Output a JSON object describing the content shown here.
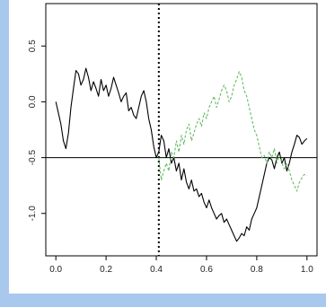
{
  "chart_data": {
    "type": "line",
    "title": "",
    "xlabel": "",
    "ylabel": "",
    "xlim": [
      -0.04,
      1.04
    ],
    "ylim": [
      -1.38,
      0.88
    ],
    "x_ticks": [
      0.0,
      0.2,
      0.4,
      0.6,
      0.8,
      1.0
    ],
    "x_tick_labels": [
      "0.0",
      "0.2",
      "0.4",
      "0.6",
      "0.8",
      "1.0"
    ],
    "y_ticks": [
      0.5,
      0.0,
      -0.5,
      -1.0
    ],
    "y_tick_labels": [
      "0.5",
      "0.0",
      "-0.5",
      "-1.0"
    ],
    "grid": false,
    "hline": {
      "y": -0.5,
      "color": "#000000"
    },
    "vline": {
      "x": 0.41,
      "style": "dotted",
      "color": "#000000"
    },
    "series": [
      {
        "color": "#000000",
        "style": "solid",
        "x": [
          0.0,
          0.01,
          0.02,
          0.03,
          0.04,
          0.05,
          0.06,
          0.07,
          0.08,
          0.09,
          0.1,
          0.11,
          0.12,
          0.13,
          0.14,
          0.15,
          0.16,
          0.17,
          0.18,
          0.19,
          0.2,
          0.21,
          0.22,
          0.23,
          0.24,
          0.25,
          0.26,
          0.27,
          0.28,
          0.29,
          0.3,
          0.31,
          0.32,
          0.33,
          0.34,
          0.35,
          0.36,
          0.37,
          0.38,
          0.39,
          0.4,
          0.41,
          0.42,
          0.43,
          0.44,
          0.45,
          0.46,
          0.47,
          0.48,
          0.49,
          0.5,
          0.51,
          0.52,
          0.53,
          0.54,
          0.55,
          0.56,
          0.57,
          0.58,
          0.59,
          0.6,
          0.61,
          0.62,
          0.63,
          0.64,
          0.65,
          0.66,
          0.67,
          0.68,
          0.69,
          0.7,
          0.71,
          0.72,
          0.73,
          0.74,
          0.75,
          0.76,
          0.77,
          0.78,
          0.79,
          0.8,
          0.81,
          0.82,
          0.83,
          0.84,
          0.85,
          0.86,
          0.87,
          0.88,
          0.89,
          0.9,
          0.91,
          0.92,
          0.93,
          0.94,
          0.95,
          0.96,
          0.97,
          0.98,
          0.99,
          1.0
        ],
        "values": [
          0.0,
          -0.1,
          -0.2,
          -0.35,
          -0.42,
          -0.28,
          -0.05,
          0.12,
          0.28,
          0.25,
          0.15,
          0.2,
          0.3,
          0.22,
          0.1,
          0.18,
          0.12,
          0.05,
          0.2,
          0.1,
          0.15,
          0.05,
          0.12,
          0.22,
          0.15,
          0.08,
          0.0,
          0.05,
          0.08,
          -0.08,
          -0.05,
          -0.12,
          -0.15,
          -0.05,
          0.05,
          0.1,
          0.0,
          -0.15,
          -0.25,
          -0.4,
          -0.5,
          -0.45,
          -0.3,
          -0.35,
          -0.5,
          -0.42,
          -0.55,
          -0.5,
          -0.62,
          -0.55,
          -0.7,
          -0.6,
          -0.72,
          -0.78,
          -0.7,
          -0.8,
          -0.78,
          -0.85,
          -0.82,
          -0.9,
          -0.95,
          -0.88,
          -0.95,
          -1.0,
          -1.05,
          -1.02,
          -1.0,
          -1.08,
          -1.05,
          -1.1,
          -1.15,
          -1.2,
          -1.25,
          -1.22,
          -1.18,
          -1.2,
          -1.12,
          -1.15,
          -1.05,
          -1.0,
          -0.95,
          -0.85,
          -0.75,
          -0.65,
          -0.55,
          -0.5,
          -0.52,
          -0.6,
          -0.5,
          -0.45,
          -0.55,
          -0.5,
          -0.62,
          -0.55,
          -0.45,
          -0.38,
          -0.3,
          -0.32,
          -0.38,
          -0.35,
          -0.33
        ]
      },
      {
        "color": "#66bb66",
        "style": "dashed",
        "x": [
          0.41,
          0.42,
          0.43,
          0.44,
          0.45,
          0.46,
          0.47,
          0.48,
          0.49,
          0.5,
          0.51,
          0.52,
          0.53,
          0.54,
          0.55,
          0.56,
          0.57,
          0.58,
          0.59,
          0.6,
          0.61,
          0.62,
          0.63,
          0.64,
          0.65,
          0.66,
          0.67,
          0.68,
          0.69,
          0.7,
          0.71,
          0.72,
          0.73,
          0.74,
          0.75,
          0.76,
          0.77,
          0.78,
          0.79,
          0.8,
          0.81,
          0.82,
          0.83,
          0.84,
          0.85,
          0.86,
          0.87,
          0.88,
          0.89,
          0.9,
          0.91,
          0.92,
          0.93,
          0.94,
          0.95,
          0.96,
          0.97,
          0.98,
          0.99,
          1.0
        ],
        "values": [
          -0.5,
          -0.7,
          -0.62,
          -0.55,
          -0.62,
          -0.45,
          -0.5,
          -0.35,
          -0.45,
          -0.3,
          -0.38,
          -0.25,
          -0.2,
          -0.35,
          -0.28,
          -0.2,
          -0.15,
          -0.22,
          -0.1,
          -0.15,
          -0.05,
          0.0,
          0.05,
          -0.05,
          0.02,
          0.1,
          0.15,
          0.1,
          0.0,
          0.05,
          0.15,
          0.2,
          0.27,
          0.22,
          0.1,
          0.05,
          -0.05,
          -0.15,
          -0.25,
          -0.3,
          -0.4,
          -0.5,
          -0.48,
          -0.55,
          -0.45,
          -0.5,
          -0.42,
          -0.55,
          -0.48,
          -0.55,
          -0.6,
          -0.55,
          -0.62,
          -0.7,
          -0.75,
          -0.8,
          -0.72,
          -0.68,
          -0.65,
          -0.66
        ]
      }
    ]
  }
}
